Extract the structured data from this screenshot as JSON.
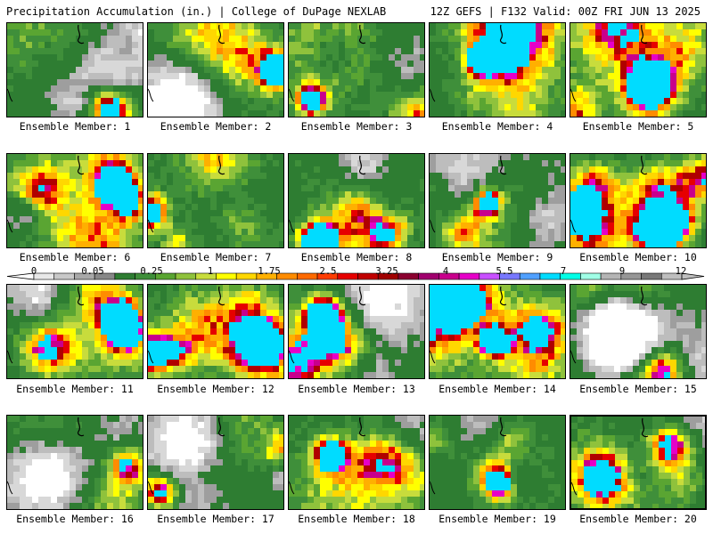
{
  "header": {
    "title": "Precipitation Accumulation (in.) | College of DuPage NEXLAB",
    "run_info": "12Z GEFS | F132 Valid: 00Z FRI JUN 13 2025"
  },
  "colorbar": {
    "labels": [
      "0",
      "0.05",
      "0.25",
      "1",
      "1.75",
      "2.5",
      "3.25",
      "4",
      "5.5",
      "7",
      "9",
      "12"
    ],
    "colors": [
      "#e8e8e8",
      "#c8c8c8",
      "#a8a8a8",
      "#888888",
      "#2e7d32",
      "#3f8f3a",
      "#5aa532",
      "#8fc23c",
      "#c8dc3c",
      "#ffff00",
      "#ffd700",
      "#ffb000",
      "#ff8c00",
      "#ff6a00",
      "#ff3c00",
      "#e60000",
      "#c00000",
      "#a00000",
      "#8b0030",
      "#a0006e",
      "#c8008c",
      "#e600c8",
      "#c850ff",
      "#7878ff",
      "#50a0ff",
      "#00dcff",
      "#00ffe6",
      "#a0ffe6",
      "#b4b4b4",
      "#969696",
      "#787878",
      "#bebebe"
    ]
  },
  "panels": [
    {
      "label": "Ensemble Member: 1"
    },
    {
      "label": "Ensemble Member: 2"
    },
    {
      "label": "Ensemble Member: 3"
    },
    {
      "label": "Ensemble Member: 4"
    },
    {
      "label": "Ensemble Member: 5"
    },
    {
      "label": "Ensemble Member: 6"
    },
    {
      "label": "Ensemble Member: 7"
    },
    {
      "label": "Ensemble Member: 8"
    },
    {
      "label": "Ensemble Member: 9"
    },
    {
      "label": "Ensemble Member: 10"
    },
    {
      "label": "Ensemble Member: 11"
    },
    {
      "label": "Ensemble Member: 12"
    },
    {
      "label": "Ensemble Member: 13"
    },
    {
      "label": "Ensemble Member: 14"
    },
    {
      "label": "Ensemble Member: 15"
    },
    {
      "label": "Ensemble Member: 16"
    },
    {
      "label": "Ensemble Member: 17"
    },
    {
      "label": "Ensemble Member: 18"
    },
    {
      "label": "Ensemble Member: 19"
    },
    {
      "label": "Ensemble Member: 20"
    }
  ],
  "selected_member": 20
}
